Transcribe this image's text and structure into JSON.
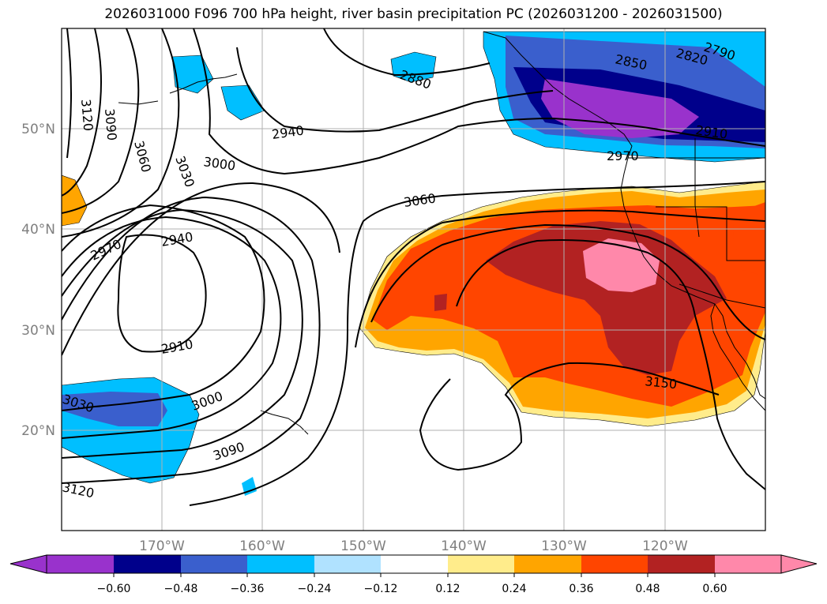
{
  "title": "2026031000 F096 700 hPa height, river basin precipitation PC (2026031200 - 2026031500)",
  "map": {
    "extent": {
      "lon": [
        -180,
        -110
      ],
      "lat": [
        10,
        60
      ]
    },
    "lat_labels": [
      {
        "lat": 50,
        "text": "50°N"
      },
      {
        "lat": 40,
        "text": "40°N"
      },
      {
        "lat": 30,
        "text": "30°N"
      },
      {
        "lat": 20,
        "text": "20°N"
      }
    ],
    "lon_labels": [
      {
        "lon": -170,
        "text": "170°W"
      },
      {
        "lon": -160,
        "text": "160°W"
      },
      {
        "lon": -150,
        "text": "150°W"
      },
      {
        "lon": -140,
        "text": "140°W"
      },
      {
        "lon": -130,
        "text": "130°W"
      },
      {
        "lon": -120,
        "text": "120°W"
      }
    ],
    "contour_labels": [
      "2790",
      "2820",
      "2850",
      "2880",
      "2910",
      "2940",
      "2970",
      "3000",
      "3030",
      "3060",
      "3090",
      "3120",
      "3150"
    ],
    "colors": {
      "purple": "#9932cc",
      "navy": "#00008b",
      "royal": "#3a5fcd",
      "sky": "#00bfff",
      "lightblue": "#b0e2ff",
      "white": "#ffffff",
      "lightyellow": "#ffec8b",
      "orange": "#ffa500",
      "orangered": "#ff4500",
      "firebrick": "#b22222",
      "pink": "#ff88aa"
    }
  },
  "colorbar": {
    "ticks": [
      "−0.60",
      "−0.48",
      "−0.36",
      "−0.24",
      "−0.12",
      "0.12",
      "0.24",
      "0.36",
      "0.48",
      "0.60"
    ],
    "bins": [
      "#9932cc",
      "#00008b",
      "#3a5fcd",
      "#00bfff",
      "#b0e2ff",
      "#ffffff",
      "#ffec8b",
      "#ffa500",
      "#ff4500",
      "#b22222",
      "#ff88aa"
    ]
  }
}
